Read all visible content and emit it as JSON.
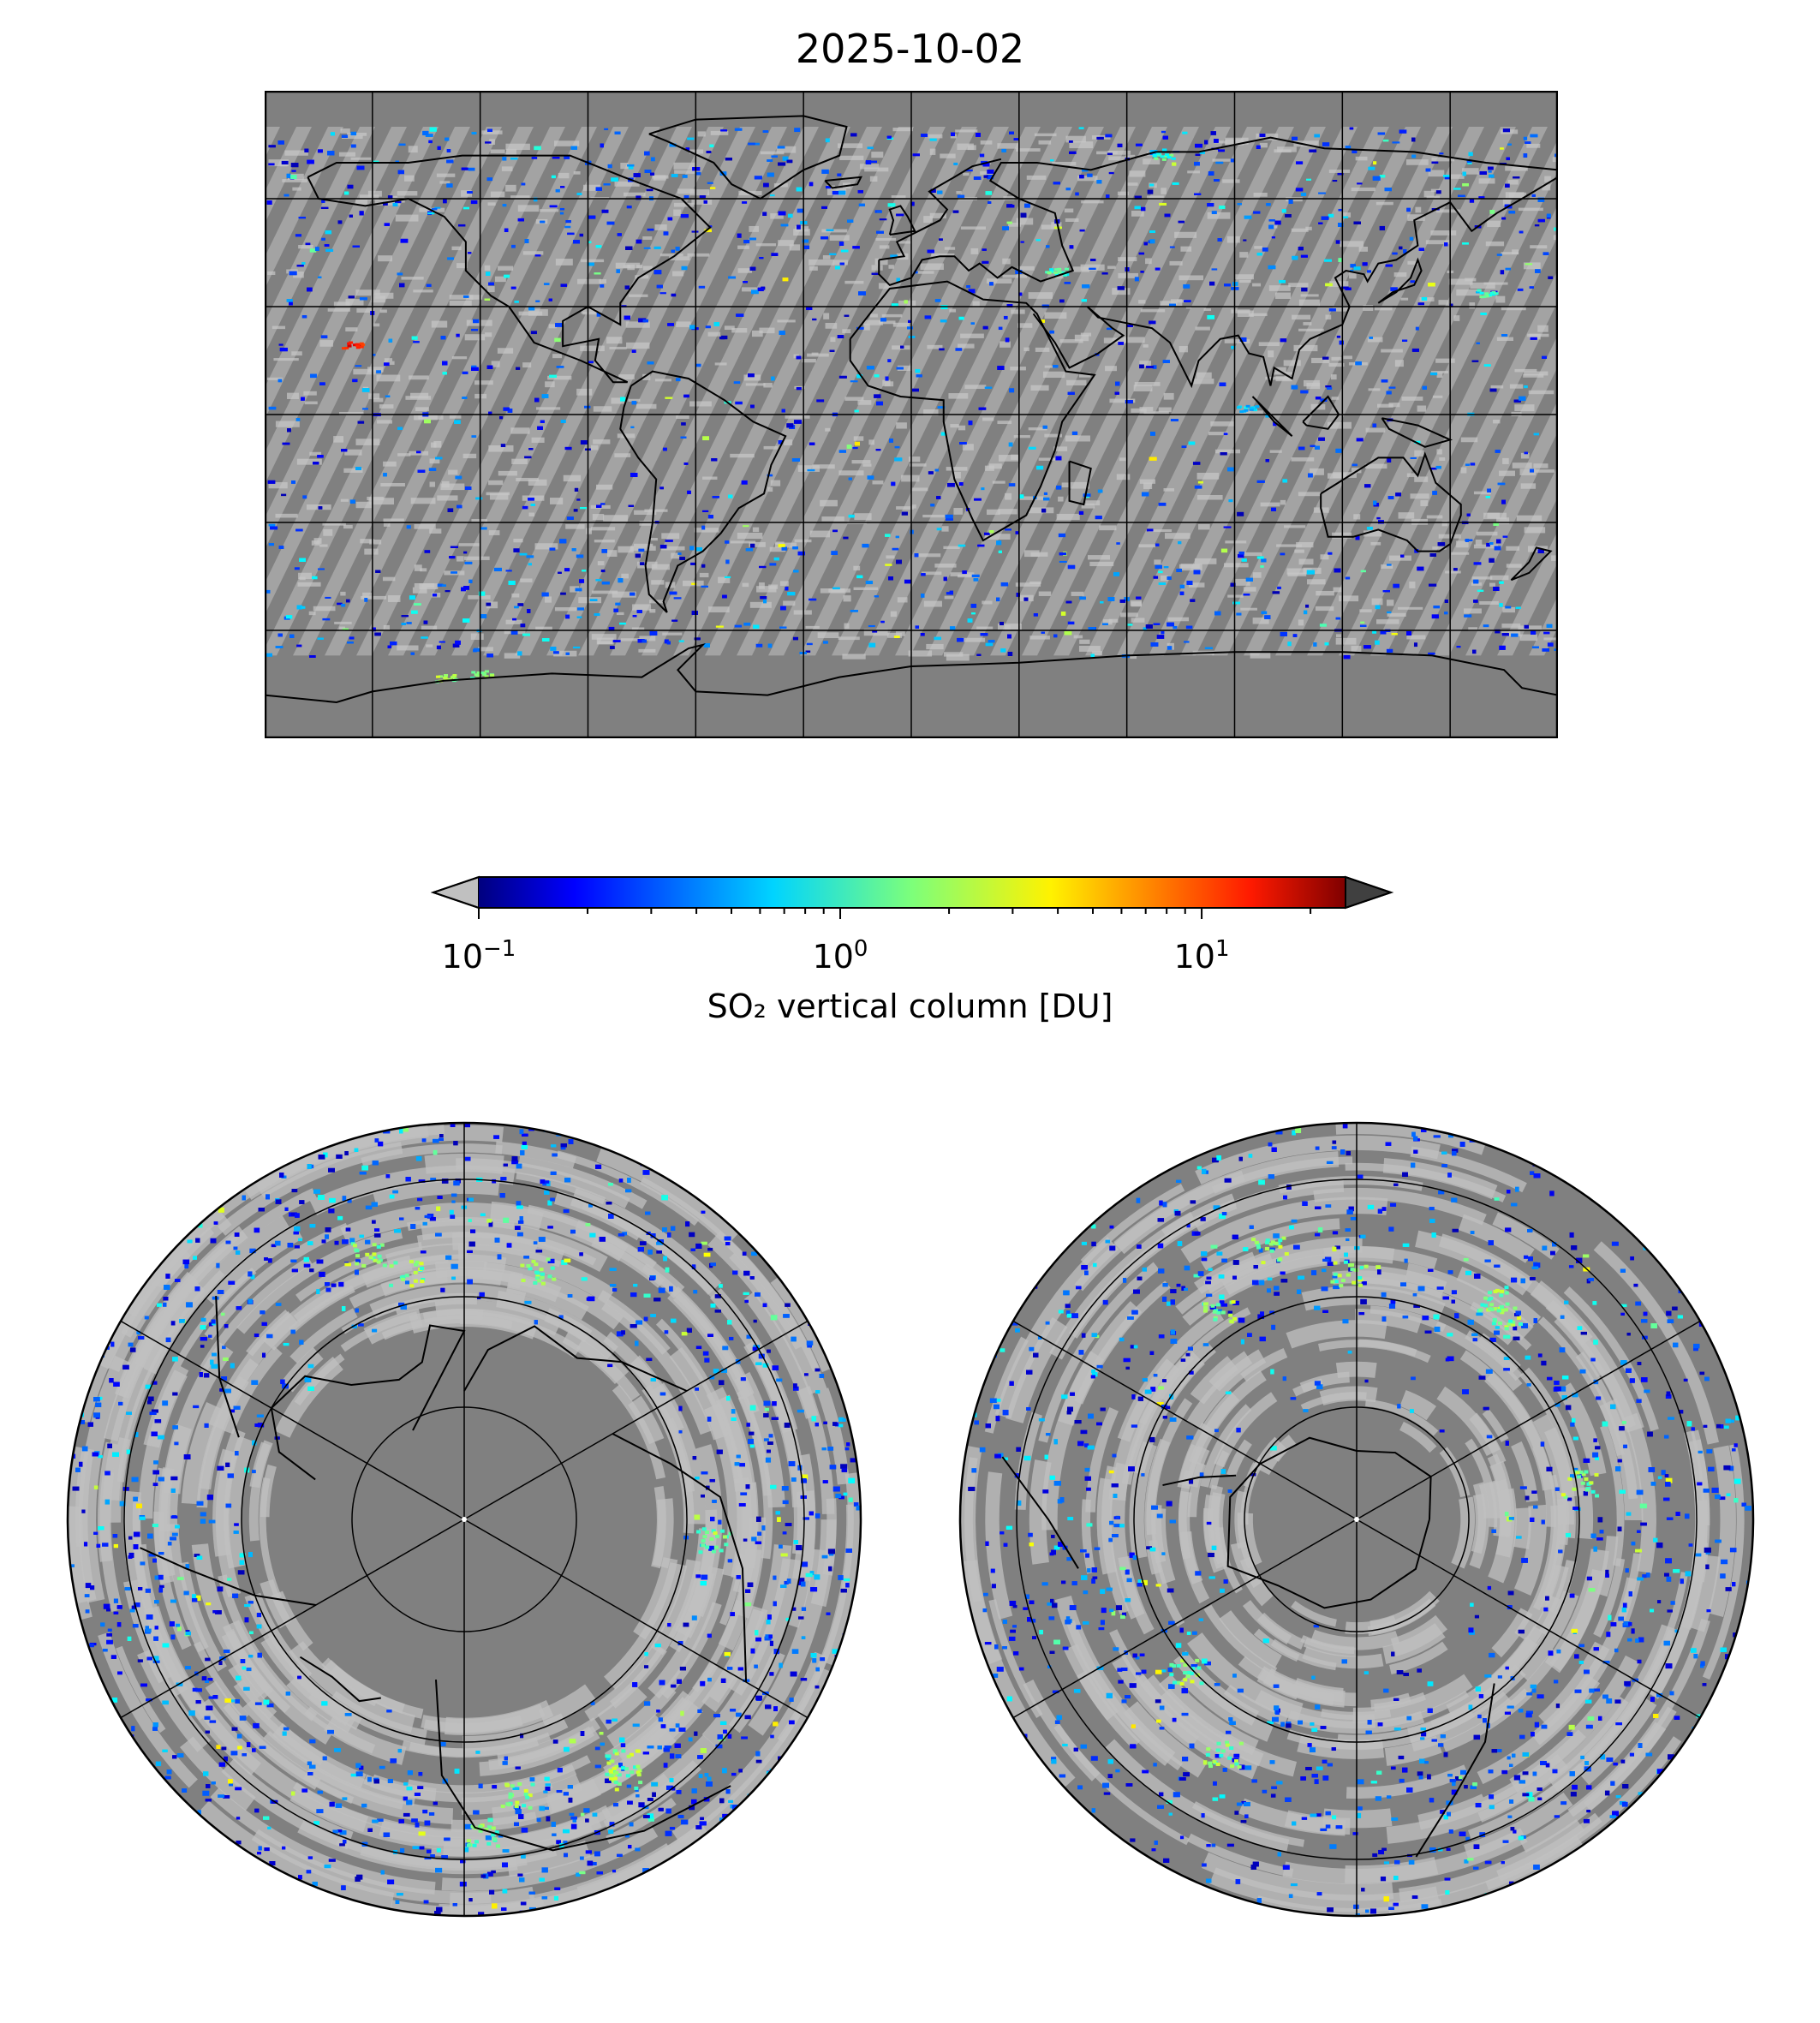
{
  "title": "2025-10-02",
  "colors": {
    "background": "#808080",
    "fill_value": "#c0c0c0",
    "coastline": "#000000",
    "grid": "#000000",
    "under": "#c0c0c0",
    "over": "#404040",
    "colormap": "jet"
  },
  "colorbar": {
    "label": "SO₂ vertical column [DU]",
    "scale": "log",
    "range": [
      0.1,
      25
    ],
    "extend": "both",
    "ticks": [
      {
        "base": "10",
        "exp": "−1",
        "value": 0.1
      },
      {
        "base": "10",
        "exp": "0",
        "value": 1
      },
      {
        "base": "10",
        "exp": "1",
        "value": 10
      }
    ]
  },
  "maps": {
    "world": {
      "projection": "plate-carree",
      "lon_range": [
        -180,
        180
      ],
      "lat_range": [
        -90,
        90
      ]
    },
    "north": {
      "projection": "north-polar-stereographic",
      "lat_boundary": 0
    },
    "south": {
      "projection": "south-polar-stereographic",
      "lat_boundary": 0
    }
  }
}
